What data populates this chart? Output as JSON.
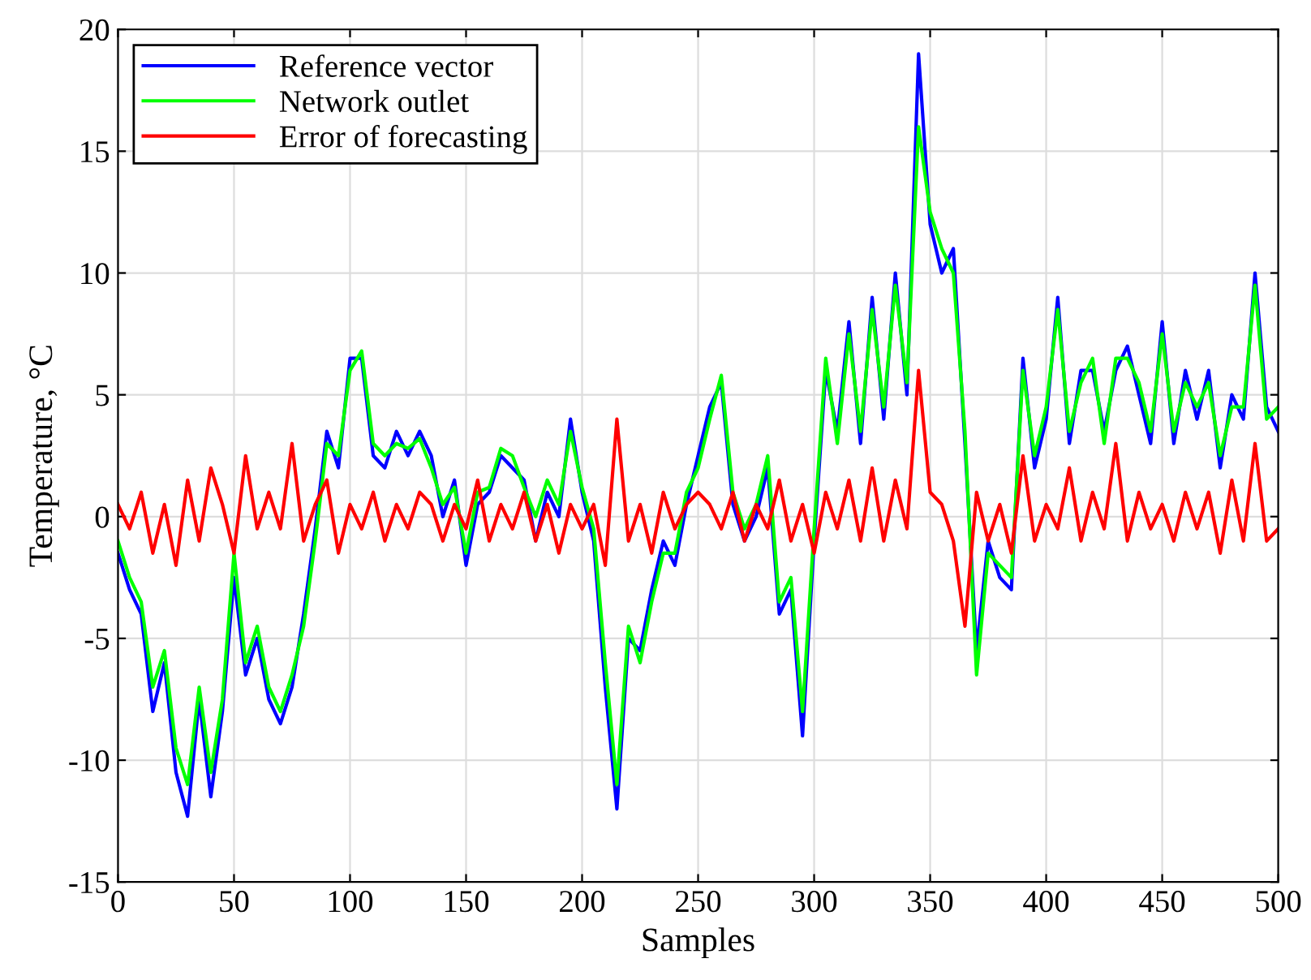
{
  "chart_data": {
    "type": "line",
    "xlabel": "Samples",
    "ylabel": "Temperature, °C",
    "xlim": [
      0,
      500
    ],
    "xticks": [
      0,
      50,
      100,
      150,
      200,
      250,
      300,
      350,
      400,
      450,
      500
    ],
    "ylim": [
      -15,
      20
    ],
    "yticks": [
      -15,
      -10,
      -5,
      0,
      5,
      10,
      15,
      20
    ],
    "grid": true,
    "legend": "top left",
    "marker": "none",
    "line_style": "solid",
    "x": [
      0,
      5,
      10,
      15,
      20,
      25,
      30,
      35,
      40,
      45,
      50,
      55,
      60,
      65,
      70,
      75,
      80,
      85,
      90,
      95,
      100,
      105,
      110,
      115,
      120,
      125,
      130,
      135,
      140,
      145,
      150,
      155,
      160,
      165,
      170,
      175,
      180,
      185,
      190,
      195,
      200,
      205,
      210,
      215,
      220,
      225,
      230,
      235,
      240,
      245,
      250,
      255,
      260,
      265,
      270,
      275,
      280,
      285,
      290,
      295,
      300,
      305,
      310,
      315,
      320,
      325,
      330,
      335,
      340,
      345,
      350,
      355,
      360,
      365,
      370,
      375,
      380,
      385,
      390,
      395,
      400,
      405,
      410,
      415,
      420,
      425,
      430,
      435,
      440,
      445,
      450,
      455,
      460,
      465,
      470,
      475,
      480,
      485,
      490,
      495,
      500
    ],
    "series": [
      {
        "name": "Reference vector",
        "color": "#0000ff",
        "values": [
          -1.5,
          -3,
          -4,
          -8,
          -6,
          -10.5,
          -12.3,
          -7.5,
          -11.5,
          -8,
          -2.5,
          -6.5,
          -5,
          -7.5,
          -8.5,
          -7,
          -4,
          -0.5,
          3.5,
          2,
          6.5,
          6.5,
          2.5,
          2,
          3.5,
          2.5,
          3.5,
          2.5,
          0,
          1.5,
          -2,
          0.5,
          1,
          2.5,
          2,
          1.5,
          -1,
          1,
          0,
          4,
          1,
          -1,
          -7,
          -12,
          -5,
          -5.5,
          -3,
          -1,
          -2,
          0.5,
          2.5,
          4.5,
          5.5,
          0.5,
          -1,
          0,
          2,
          -4,
          -3,
          -9,
          -1,
          6,
          3.5,
          8,
          3,
          9,
          4,
          10,
          5,
          19,
          12,
          10,
          11,
          3,
          -5.5,
          -1,
          -2.5,
          -3,
          6.5,
          2,
          4,
          9,
          3,
          6,
          6,
          3.5,
          6,
          7,
          5,
          3,
          8,
          3,
          6,
          4,
          6,
          2,
          5,
          4,
          10,
          4.5,
          3.5
        ]
      },
      {
        "name": "Network outlet",
        "color": "#00ff00",
        "values": [
          -1,
          -2.5,
          -3.5,
          -7,
          -5.5,
          -9.5,
          -11,
          -7,
          -10.5,
          -7.5,
          -1.5,
          -6,
          -4.5,
          -7,
          -8,
          -6.5,
          -4.5,
          -1,
          3,
          2.5,
          6,
          6.8,
          3,
          2.5,
          3,
          2.8,
          3.2,
          2,
          0.5,
          1.2,
          -1.5,
          1,
          1.2,
          2.8,
          2.5,
          1.2,
          0,
          1.5,
          0.5,
          3.5,
          1.2,
          -0.5,
          -6,
          -11,
          -4.5,
          -6,
          -3.5,
          -1.5,
          -1.5,
          1,
          2,
          4,
          5.8,
          1,
          -0.5,
          0.5,
          2.5,
          -3.5,
          -2.5,
          -8,
          -0.5,
          6.5,
          3,
          7.5,
          3.5,
          8.5,
          4.5,
          9.5,
          5.5,
          16,
          12.5,
          11,
          10,
          3.5,
          -6.5,
          -1.5,
          -2,
          -2.5,
          6,
          2.5,
          4.5,
          8.5,
          3.5,
          5.5,
          6.5,
          3,
          6.5,
          6.5,
          5.5,
          3.5,
          7.5,
          3.5,
          5.5,
          4.5,
          5.5,
          2.5,
          4.5,
          4.5,
          9.5,
          4,
          4.5
        ]
      },
      {
        "name": "Error of forecasting",
        "color": "#ff0000",
        "values": [
          0.5,
          -0.5,
          1,
          -1.5,
          0.5,
          -2,
          1.5,
          -1,
          2,
          0.5,
          -1.5,
          2.5,
          -0.5,
          1,
          -0.5,
          3,
          -1,
          0.5,
          1.5,
          -1.5,
          0.5,
          -0.5,
          1,
          -1,
          0.5,
          -0.5,
          1,
          0.5,
          -1,
          0.5,
          -0.5,
          1.5,
          -1,
          0.5,
          -0.5,
          1,
          -1,
          0.5,
          -1.5,
          0.5,
          -0.5,
          0.5,
          -2,
          4,
          -1,
          0.5,
          -1.5,
          1,
          -0.5,
          0.5,
          1,
          0.5,
          -0.5,
          1,
          -1,
          0.5,
          -0.5,
          1.5,
          -1,
          0.5,
          -1.5,
          1,
          -0.5,
          1.5,
          -1,
          2,
          -1,
          1.5,
          -0.5,
          6,
          1,
          0.5,
          -1,
          -4.5,
          1,
          -1,
          0.5,
          -1.5,
          2.5,
          -1,
          0.5,
          -0.5,
          2,
          -1,
          1,
          -0.5,
          3,
          -1,
          1,
          -0.5,
          0.5,
          -1,
          1,
          -0.5,
          1,
          -1.5,
          1.5,
          -1,
          3,
          -1,
          -0.5
        ]
      }
    ]
  }
}
